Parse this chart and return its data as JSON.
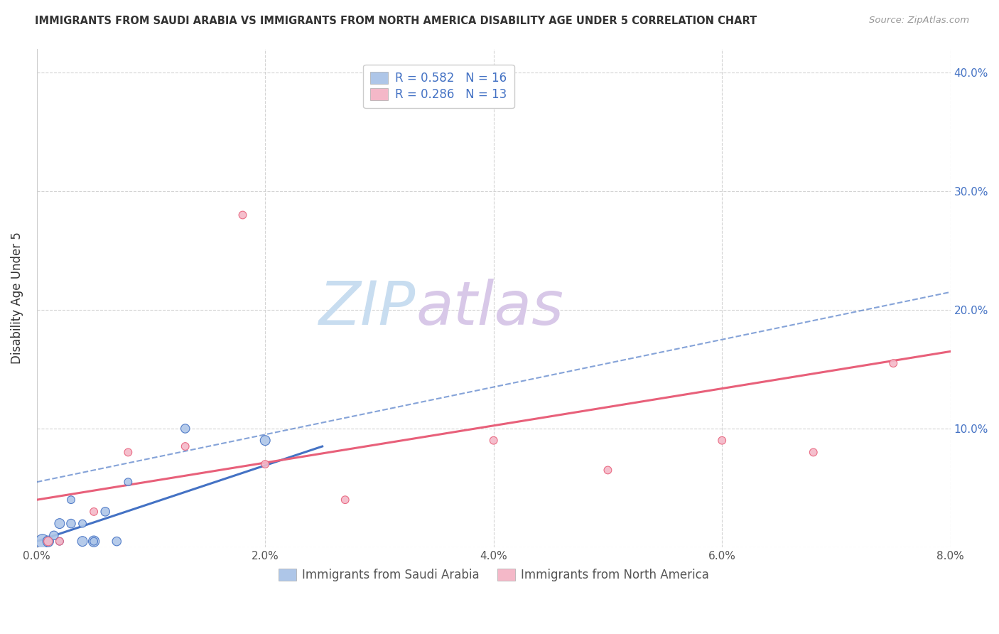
{
  "title": "IMMIGRANTS FROM SAUDI ARABIA VS IMMIGRANTS FROM NORTH AMERICA DISABILITY AGE UNDER 5 CORRELATION CHART",
  "source": "Source: ZipAtlas.com",
  "ylabel": "Disability Age Under 5",
  "xlim": [
    0.0,
    0.08
  ],
  "ylim": [
    0.0,
    0.42
  ],
  "xticks": [
    0.0,
    0.02,
    0.04,
    0.06,
    0.08
  ],
  "yticks": [
    0.0,
    0.1,
    0.2,
    0.3,
    0.4
  ],
  "xtick_labels": [
    "0.0%",
    "2.0%",
    "4.0%",
    "6.0%",
    "8.0%"
  ],
  "right_ytick_labels": [
    "",
    "10.0%",
    "20.0%",
    "30.0%",
    "40.0%"
  ],
  "blue_series": {
    "label": "Immigrants from Saudi Arabia",
    "R": 0.582,
    "N": 16,
    "color": "#aec6e8",
    "line_color": "#4472c4",
    "x": [
      0.0005,
      0.001,
      0.0015,
      0.002,
      0.002,
      0.003,
      0.003,
      0.004,
      0.004,
      0.005,
      0.005,
      0.006,
      0.007,
      0.008,
      0.013,
      0.02
    ],
    "y": [
      0.005,
      0.005,
      0.01,
      0.005,
      0.02,
      0.02,
      0.04,
      0.005,
      0.02,
      0.005,
      0.005,
      0.03,
      0.005,
      0.055,
      0.1,
      0.09
    ],
    "sizes": [
      200,
      120,
      80,
      60,
      100,
      80,
      60,
      100,
      60,
      120,
      60,
      80,
      80,
      60,
      80,
      100
    ]
  },
  "pink_series": {
    "label": "Immigrants from North America",
    "R": 0.286,
    "N": 13,
    "color": "#f4b8c8",
    "line_color": "#e8607a",
    "x": [
      0.001,
      0.002,
      0.005,
      0.008,
      0.013,
      0.02,
      0.027,
      0.04,
      0.05,
      0.06,
      0.068,
      0.075
    ],
    "y": [
      0.005,
      0.005,
      0.03,
      0.08,
      0.085,
      0.07,
      0.04,
      0.09,
      0.065,
      0.09,
      0.08,
      0.155
    ],
    "outlier_x": [
      0.018
    ],
    "outlier_y": [
      0.28
    ],
    "sizes": [
      80,
      60,
      60,
      60,
      60,
      60,
      60,
      60,
      60,
      60,
      60,
      60
    ]
  },
  "blue_line": {
    "x0": 0.0,
    "y0": 0.005,
    "x1": 0.025,
    "y1": 0.085
  },
  "blue_dashed_line": {
    "x0": 0.0,
    "y0": 0.055,
    "x1": 0.08,
    "y1": 0.215
  },
  "pink_line": {
    "x0": 0.0,
    "y0": 0.04,
    "x1": 0.08,
    "y1": 0.165
  },
  "watermark_zip": "ZIP",
  "watermark_atlas": "atlas",
  "watermark_color_zip": "#c8ddf0",
  "watermark_color_atlas": "#d8c8e8",
  "background_color": "#ffffff",
  "grid_color": "#d0d0d0"
}
